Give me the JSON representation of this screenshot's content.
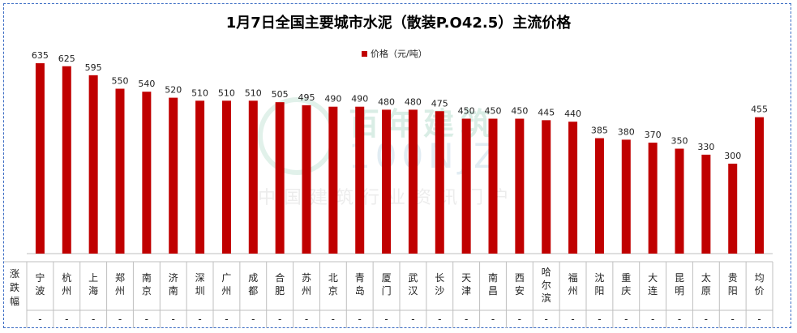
{
  "chart_data": {
    "type": "bar",
    "title": "1月7日全国主要城市水泥（散装P.O42.5）主流价格",
    "legend": {
      "name": "价格（元/吨）",
      "position": "top"
    },
    "categories": [
      "宁波",
      "杭州",
      "上海",
      "郑州",
      "南京",
      "济南",
      "深圳",
      "广州",
      "成都",
      "合肥",
      "苏州",
      "北京",
      "青岛",
      "厦门",
      "武汉",
      "长沙",
      "天津",
      "南昌",
      "西安",
      "哈尔滨",
      "福州",
      "沈阳",
      "重庆",
      "大连",
      "昆明",
      "太原",
      "贵阳",
      "均价"
    ],
    "series": [
      {
        "name": "价格（元/吨）",
        "values": [
          635,
          625,
          595,
          550,
          540,
          520,
          510,
          510,
          510,
          505,
          495,
          490,
          490,
          480,
          480,
          475,
          450,
          450,
          450,
          445,
          440,
          385,
          380,
          370,
          350,
          330,
          300,
          455
        ]
      }
    ],
    "table_row_label": "涨跌幅",
    "changes": [
      "-",
      "-",
      "-",
      "-",
      "-",
      "-",
      "-",
      "-",
      "-",
      "-",
      "-",
      "-",
      "-",
      "-",
      "-",
      "-",
      "-",
      "-",
      "-",
      "-",
      "-",
      "-",
      "-",
      "-",
      "-",
      "-",
      "-",
      "-"
    ],
    "ylim": [
      0,
      700
    ],
    "grid": false,
    "bar_color": "#c00000"
  },
  "watermark": {
    "brand": "百年建筑",
    "site": "100NJZ",
    "slogan": "中国建筑行业资讯门户"
  }
}
